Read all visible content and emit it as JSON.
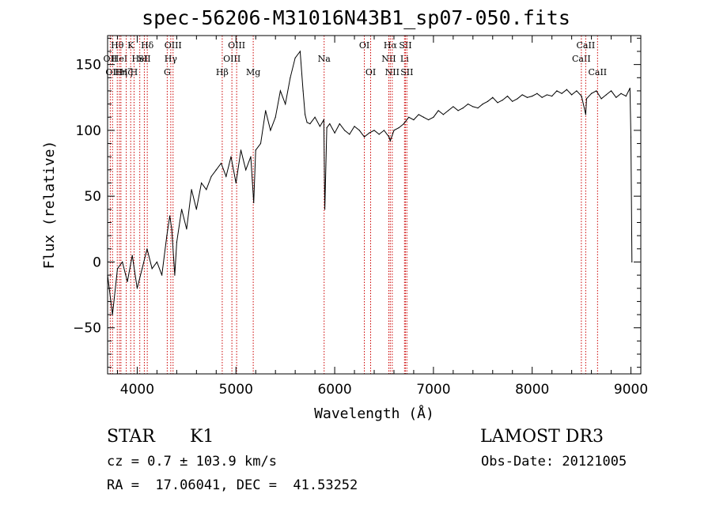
{
  "title": "spec-56206-M31016N43B1_sp07-050.fits",
  "chart_data": {
    "type": "line",
    "title": "spec-56206-M31016N43B1_sp07-050.fits",
    "xlabel": "Wavelength (Å)",
    "ylabel": "Flux (relative)",
    "xlim": [
      3700,
      9100
    ],
    "ylim": [
      -85,
      172
    ],
    "xticks": [
      4000,
      5000,
      6000,
      7000,
      8000,
      9000
    ],
    "yticks": [
      -50,
      0,
      50,
      100,
      150
    ],
    "series": [
      {
        "name": "flux",
        "color": "#000000",
        "x": [
          3700,
          3750,
          3800,
          3850,
          3900,
          3950,
          4000,
          4050,
          4100,
          4150,
          4200,
          4250,
          4300,
          4330,
          4350,
          4380,
          4400,
          4450,
          4500,
          4550,
          4600,
          4650,
          4700,
          4750,
          4800,
          4850,
          4900,
          4950,
          5000,
          5050,
          5100,
          5150,
          5180,
          5200,
          5250,
          5300,
          5350,
          5400,
          5450,
          5500,
          5550,
          5600,
          5650,
          5680,
          5700,
          5720,
          5750,
          5800,
          5850,
          5890,
          5900,
          5920,
          5950,
          6000,
          6050,
          6100,
          6150,
          6200,
          6250,
          6300,
          6350,
          6400,
          6450,
          6500,
          6550,
          6563,
          6600,
          6650,
          6700,
          6750,
          6800,
          6850,
          6900,
          6950,
          7000,
          7050,
          7100,
          7150,
          7200,
          7250,
          7300,
          7350,
          7400,
          7450,
          7500,
          7550,
          7600,
          7650,
          7700,
          7750,
          7800,
          7850,
          7900,
          7950,
          8000,
          8050,
          8100,
          8150,
          8200,
          8250,
          8300,
          8350,
          8400,
          8450,
          8500,
          8542,
          8550,
          8600,
          8650,
          8700,
          8750,
          8800,
          8850,
          8900,
          8950,
          8990,
          9000,
          9010
        ],
        "values": [
          -10,
          -40,
          -5,
          0,
          -15,
          5,
          -20,
          -5,
          10,
          -5,
          0,
          -10,
          20,
          35,
          25,
          -10,
          15,
          40,
          25,
          55,
          40,
          60,
          55,
          65,
          70,
          75,
          65,
          80,
          60,
          85,
          70,
          80,
          45,
          85,
          90,
          115,
          100,
          110,
          130,
          120,
          140,
          155,
          160,
          130,
          112,
          106,
          105,
          110,
          103,
          108,
          40,
          102,
          105,
          98,
          105,
          100,
          97,
          103,
          100,
          95,
          98,
          100,
          97,
          100,
          95,
          92,
          100,
          102,
          105,
          110,
          108,
          112,
          110,
          108,
          110,
          115,
          112,
          115,
          118,
          115,
          117,
          120,
          118,
          117,
          120,
          122,
          125,
          121,
          123,
          126,
          122,
          124,
          127,
          125,
          126,
          128,
          125,
          127,
          126,
          130,
          128,
          131,
          127,
          130,
          126,
          112,
          124,
          128,
          130,
          124,
          127,
          130,
          125,
          128,
          126,
          132,
          95,
          0
        ]
      }
    ],
    "line_markers": [
      {
        "wavelength": 3727,
        "label": "OII",
        "row": 2
      },
      {
        "wavelength": 3750,
        "label": "OII",
        "row": 3
      },
      {
        "wavelength": 3798,
        "label": "Hθ",
        "row": 1
      },
      {
        "wavelength": 3820,
        "label": "HeI",
        "row": 2
      },
      {
        "wavelength": 3835,
        "label": "Hη",
        "row": 3
      },
      {
        "wavelength": 3889,
        "label": "Hζ",
        "row": 3
      },
      {
        "wavelength": 3934,
        "label": "K",
        "row": 1
      },
      {
        "wavelength": 3968,
        "label": "H",
        "row": 3
      },
      {
        "wavelength": 4026,
        "label": "HeI",
        "row": 2
      },
      {
        "wavelength": 4072,
        "label": "SII",
        "row": 2
      },
      {
        "wavelength": 4102,
        "label": "Hδ",
        "row": 1
      },
      {
        "wavelength": 4304,
        "label": "G",
        "row": 3
      },
      {
        "wavelength": 4340,
        "label": "Hγ",
        "row": 2
      },
      {
        "wavelength": 4363,
        "label": "OIII",
        "row": 1
      },
      {
        "wavelength": 4861,
        "label": "Hβ",
        "row": 3
      },
      {
        "wavelength": 4959,
        "label": "OIII",
        "row": 2
      },
      {
        "wavelength": 5007,
        "label": "OIII",
        "row": 1
      },
      {
        "wavelength": 5175,
        "label": "Mg",
        "row": 3
      },
      {
        "wavelength": 5893,
        "label": "Na",
        "row": 2
      },
      {
        "wavelength": 6300,
        "label": "OI",
        "row": 1
      },
      {
        "wavelength": 6364,
        "label": "OI",
        "row": 3
      },
      {
        "wavelength": 6548,
        "label": "NII",
        "row": 2
      },
      {
        "wavelength": 6563,
        "label": "Hα",
        "row": 1
      },
      {
        "wavelength": 6583,
        "label": "NII",
        "row": 3
      },
      {
        "wavelength": 6707,
        "label": "Li",
        "row": 2
      },
      {
        "wavelength": 6716,
        "label": "SII",
        "row": 1
      },
      {
        "wavelength": 6731,
        "label": "SII",
        "row": 3
      },
      {
        "wavelength": 8498,
        "label": "CaII",
        "row": 2
      },
      {
        "wavelength": 8542,
        "label": "CaII",
        "row": 1
      },
      {
        "wavelength": 8662,
        "label": "CaII",
        "row": 3
      }
    ]
  },
  "info": {
    "object_class": "STAR",
    "subclass": "K1",
    "survey": "LAMOST DR3",
    "velocity": "cz = 0.7 ± 103.9 km/s",
    "obs_date": "Obs-Date: 20121005",
    "coords": "RA =  17.06041, DEC =  41.53252"
  }
}
